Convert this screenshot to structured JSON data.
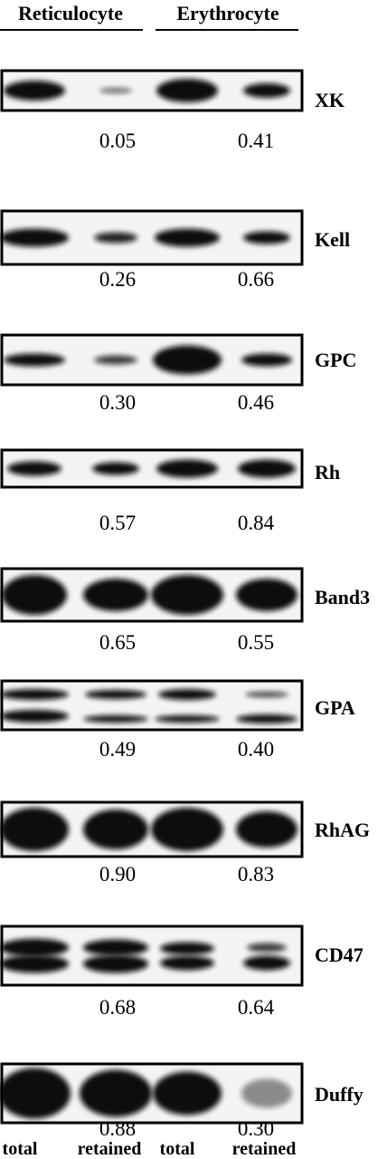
{
  "header": {
    "groups": [
      "Reticulocyte",
      "Erythrocyte"
    ]
  },
  "panels": [
    {
      "label": "XK",
      "values": [
        "0.05",
        "0.41"
      ]
    },
    {
      "label": "Kell",
      "values": [
        "0.26",
        "0.66"
      ]
    },
    {
      "label": "GPC",
      "values": [
        "0.30",
        "0.46"
      ]
    },
    {
      "label": "Rh",
      "values": [
        "0.57",
        "0.84"
      ]
    },
    {
      "label": "Band3",
      "values": [
        "0.65",
        "0.55"
      ]
    },
    {
      "label": "GPA",
      "values": [
        "0.49",
        "0.40"
      ]
    },
    {
      "label": "RhAG",
      "values": [
        "0.90",
        "0.83"
      ]
    },
    {
      "label": "CD47",
      "values": [
        "0.68",
        "0.64"
      ]
    },
    {
      "label": "Duffy",
      "values": [
        "0.88",
        "0.30"
      ]
    }
  ],
  "footer": {
    "lanes": [
      "total",
      "retained",
      "total",
      "retained"
    ]
  }
}
